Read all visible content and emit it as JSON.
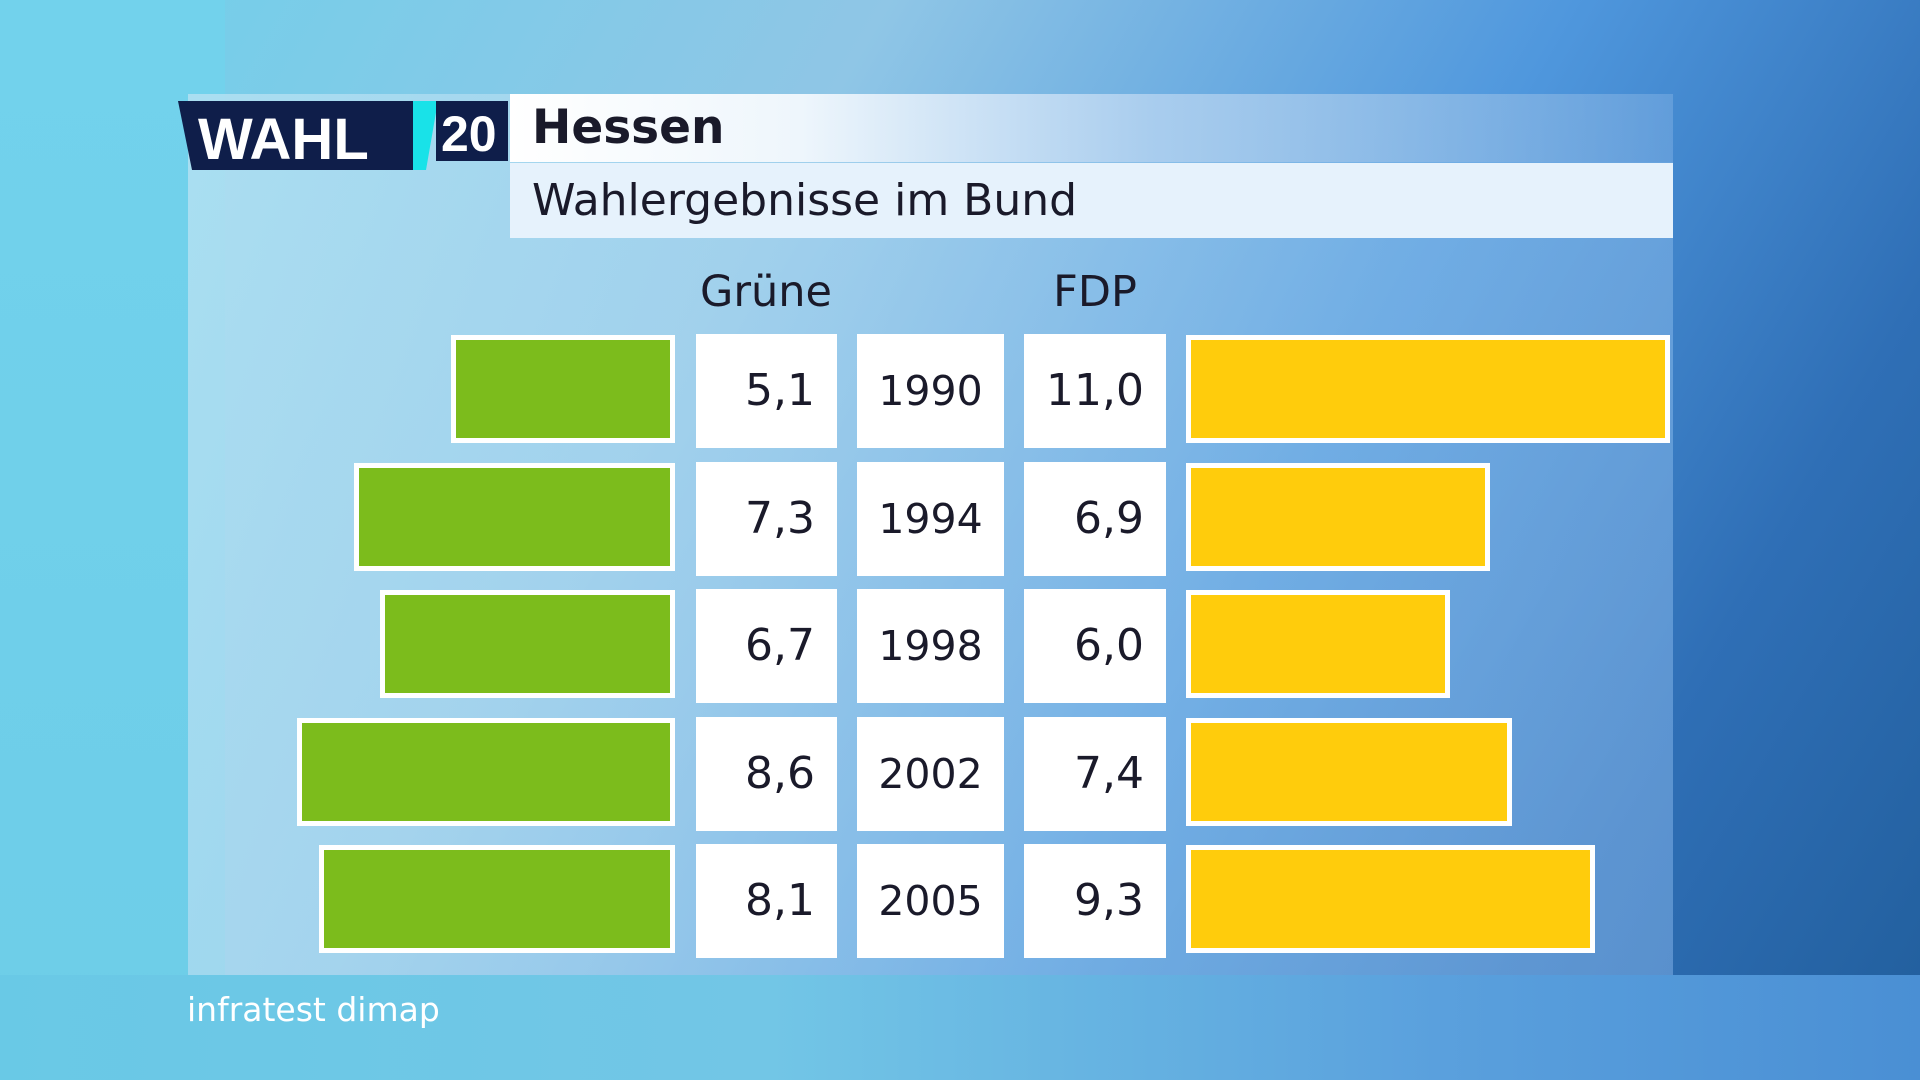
{
  "header": {
    "logo_text": "WAHL",
    "logo_number": "20",
    "title": "Hessen",
    "subtitle": "Wahlergebnisse im Bund"
  },
  "source": "infratest dimap",
  "colors": {
    "gruene": "#7cbc1c",
    "fdp": "#ffcc0c",
    "logo_navy": "#0f1e4a",
    "logo_cyan": "#19e2e8"
  },
  "chart_data": {
    "type": "bar",
    "categories": [
      "1990",
      "1994",
      "1998",
      "2002",
      "2005"
    ],
    "series": [
      {
        "name": "Grüne",
        "values": [
          5.1,
          7.3,
          6.7,
          8.6,
          8.1
        ],
        "labels": [
          "5,1",
          "7,3",
          "6,7",
          "8,6",
          "8,1"
        ]
      },
      {
        "name": "FDP",
        "values": [
          11.0,
          6.9,
          6.0,
          7.4,
          9.3
        ],
        "labels": [
          "11,0",
          "6,9",
          "6,0",
          "7,4",
          "9,3"
        ]
      }
    ]
  }
}
